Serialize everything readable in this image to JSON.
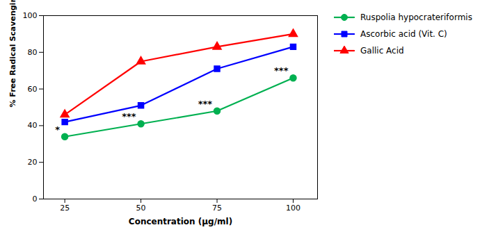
{
  "chart_data": {
    "type": "line",
    "x": [
      25,
      50,
      75,
      100
    ],
    "series": [
      {
        "name": "Ruspolia hypocrateriformis",
        "color": "#00B050",
        "marker": "circle",
        "values": [
          34,
          41,
          48,
          66
        ]
      },
      {
        "name": "Ascorbic acid (Vit. C)",
        "color": "#0000FF",
        "marker": "square",
        "values": [
          42,
          51,
          71,
          83
        ]
      },
      {
        "name": "Gallic Acid",
        "color": "#FF0000",
        "marker": "triangle",
        "values": [
          46,
          75,
          83,
          90
        ]
      }
    ],
    "xlabel": "Concentration (µg/ml)",
    "ylabel": "% Free Radical Scavenging Activity",
    "xlim": [
      18,
      108
    ],
    "ylim": [
      0,
      100
    ],
    "xticks": [
      25,
      50,
      75,
      100
    ],
    "yticks": [
      0,
      20,
      40,
      60,
      80,
      100
    ],
    "annotations": [
      {
        "x": 25,
        "y": 34,
        "text": "*"
      },
      {
        "x": 50,
        "y": 41,
        "text": "***"
      },
      {
        "x": 75,
        "y": 48,
        "text": "***"
      },
      {
        "x": 100,
        "y": 66,
        "text": "***"
      }
    ],
    "legend": "right"
  }
}
